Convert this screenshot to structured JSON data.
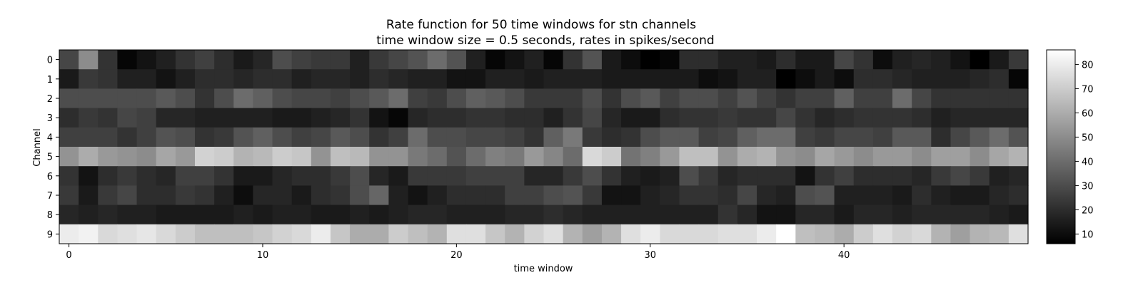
{
  "chart_data": {
    "type": "heatmap",
    "title": "Rate function for 50 time windows for stn channels",
    "subtitle": "time window size = 0.5 seconds, rates in spikes/second",
    "xlabel": "time window",
    "ylabel": "Channel",
    "x_ticks": [
      0,
      10,
      20,
      30,
      40
    ],
    "rows": [
      0,
      1,
      2,
      3,
      4,
      5,
      6,
      7,
      8,
      9
    ],
    "colormap": "gray",
    "colorbar": {
      "min": 6,
      "max": 86,
      "ticks": [
        10,
        20,
        30,
        40,
        50,
        60,
        70,
        80
      ]
    },
    "values": [
      [
        28,
        50,
        22,
        8,
        12,
        16,
        22,
        26,
        20,
        14,
        18,
        30,
        26,
        24,
        24,
        16,
        24,
        28,
        32,
        40,
        32,
        16,
        8,
        12,
        16,
        8,
        22,
        32,
        14,
        10,
        6,
        8,
        20,
        20,
        16,
        16,
        14,
        20,
        14,
        14,
        28,
        22,
        10,
        16,
        18,
        16,
        12,
        6,
        14,
        24
      ],
      [
        14,
        24,
        22,
        16,
        16,
        12,
        16,
        20,
        20,
        18,
        20,
        20,
        16,
        18,
        18,
        16,
        20,
        18,
        16,
        16,
        12,
        12,
        16,
        16,
        14,
        16,
        16,
        16,
        14,
        14,
        14,
        14,
        14,
        10,
        12,
        16,
        16,
        6,
        10,
        14,
        10,
        20,
        20,
        18,
        16,
        16,
        16,
        18,
        20,
        8
      ],
      [
        30,
        30,
        30,
        30,
        30,
        34,
        30,
        22,
        30,
        40,
        36,
        30,
        28,
        28,
        26,
        30,
        34,
        40,
        26,
        24,
        30,
        36,
        34,
        30,
        24,
        24,
        24,
        30,
        22,
        30,
        34,
        26,
        30,
        30,
        26,
        32,
        26,
        22,
        26,
        26,
        36,
        26,
        26,
        40,
        28,
        22,
        22,
        22,
        22,
        22
      ],
      [
        20,
        24,
        22,
        28,
        26,
        18,
        18,
        16,
        16,
        16,
        16,
        14,
        14,
        16,
        18,
        22,
        12,
        8,
        18,
        20,
        20,
        22,
        22,
        20,
        20,
        16,
        22,
        28,
        18,
        14,
        14,
        20,
        22,
        22,
        24,
        22,
        22,
        28,
        22,
        18,
        20,
        22,
        22,
        22,
        20,
        16,
        18,
        18,
        18,
        18
      ],
      [
        26,
        26,
        26,
        22,
        26,
        32,
        30,
        22,
        24,
        32,
        36,
        30,
        26,
        28,
        34,
        30,
        22,
        26,
        40,
        30,
        30,
        28,
        28,
        26,
        22,
        36,
        44,
        24,
        20,
        22,
        30,
        34,
        34,
        26,
        28,
        36,
        40,
        40,
        26,
        24,
        28,
        28,
        26,
        34,
        34,
        20,
        28,
        34,
        40,
        32
      ],
      [
        52,
        60,
        54,
        52,
        50,
        58,
        54,
        72,
        70,
        62,
        64,
        70,
        68,
        52,
        66,
        64,
        52,
        52,
        44,
        40,
        32,
        40,
        46,
        44,
        54,
        48,
        40,
        74,
        70,
        42,
        46,
        54,
        66,
        66,
        52,
        60,
        62,
        52,
        50,
        58,
        54,
        50,
        54,
        54,
        50,
        56,
        56,
        50,
        58,
        62
      ],
      [
        22,
        12,
        20,
        24,
        20,
        18,
        26,
        26,
        22,
        14,
        14,
        18,
        20,
        20,
        24,
        30,
        18,
        14,
        24,
        24,
        24,
        26,
        26,
        26,
        18,
        18,
        24,
        30,
        22,
        16,
        14,
        16,
        30,
        24,
        18,
        20,
        20,
        20,
        12,
        22,
        26,
        20,
        20,
        20,
        18,
        24,
        28,
        24,
        16,
        18
      ],
      [
        24,
        14,
        24,
        28,
        20,
        20,
        24,
        22,
        16,
        10,
        18,
        18,
        14,
        20,
        22,
        30,
        38,
        16,
        12,
        16,
        20,
        20,
        20,
        26,
        26,
        30,
        32,
        24,
        12,
        12,
        16,
        18,
        22,
        22,
        20,
        28,
        18,
        16,
        30,
        32,
        16,
        16,
        16,
        14,
        20,
        16,
        14,
        14,
        18,
        20
      ],
      [
        18,
        16,
        18,
        16,
        16,
        14,
        14,
        14,
        14,
        16,
        14,
        16,
        16,
        14,
        14,
        16,
        14,
        16,
        18,
        18,
        16,
        16,
        16,
        18,
        18,
        20,
        18,
        16,
        16,
        16,
        16,
        16,
        16,
        16,
        22,
        18,
        12,
        12,
        18,
        18,
        14,
        18,
        18,
        16,
        18,
        18,
        18,
        18,
        16,
        14
      ],
      [
        80,
        82,
        74,
        76,
        78,
        74,
        70,
        66,
        66,
        66,
        68,
        72,
        74,
        80,
        68,
        60,
        60,
        70,
        66,
        62,
        76,
        76,
        68,
        62,
        72,
        76,
        62,
        56,
        62,
        76,
        80,
        74,
        74,
        74,
        76,
        76,
        80,
        86,
        66,
        64,
        60,
        70,
        76,
        72,
        74,
        62,
        56,
        62,
        64,
        76
      ]
    ]
  }
}
